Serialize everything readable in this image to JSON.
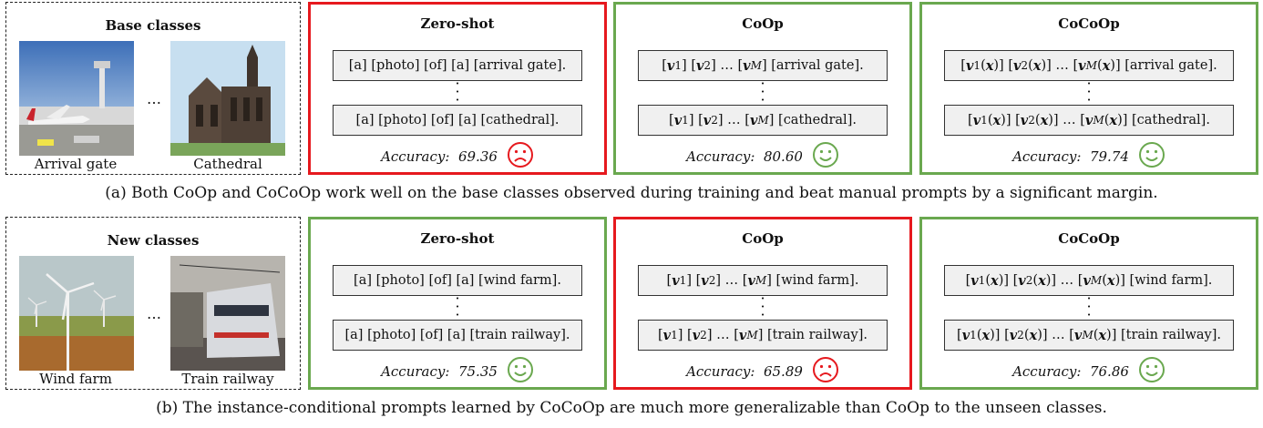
{
  "rows": [
    {
      "classes_title": "Base classes",
      "image_left_caption": "Arrival gate",
      "image_right_caption": "Cathedral",
      "ellipsis": "…",
      "panels": [
        {
          "title": "Zero-shot",
          "prompt_top": "[a] [photo] [of] [a] [arrival gate].",
          "prompt_bottom": "[a] [photo] [of] [a] [cathedral].",
          "accuracy_label": "Accuracy:",
          "accuracy": "69.36",
          "face": "sad-face-icon",
          "color": "#e6191e"
        },
        {
          "title": "CoOp",
          "prompt_top_suffix": "[arrival gate].",
          "prompt_bottom_suffix": "[cathedral].",
          "accuracy_label": "Accuracy:",
          "accuracy": "80.60",
          "face": "smiley-face-icon",
          "color": "#6aa84f"
        },
        {
          "title": "CoCoOp",
          "prompt_top_suffix": "[arrival gate].",
          "prompt_bottom_suffix": "[cathedral].",
          "accuracy_label": "Accuracy:",
          "accuracy": "79.74",
          "face": "smiley-face-icon",
          "color": "#6aa84f"
        }
      ],
      "caption": "(a) Both CoOp and CoCoOp work well on the base classes observed during training and beat manual prompts by a significant margin."
    },
    {
      "classes_title": "New classes",
      "image_left_caption": "Wind farm",
      "image_right_caption": "Train railway",
      "ellipsis": "…",
      "panels": [
        {
          "title": "Zero-shot",
          "prompt_top": "[a] [photo] [of] [a] [wind farm].",
          "prompt_bottom": "[a] [photo] [of] [a] [train railway].",
          "accuracy_label": "Accuracy:",
          "accuracy": "75.35",
          "face": "smiley-face-icon",
          "color": "#6aa84f"
        },
        {
          "title": "CoOp",
          "prompt_top_suffix": "[wind farm].",
          "prompt_bottom_suffix": "[train railway].",
          "accuracy_label": "Accuracy:",
          "accuracy": "65.89",
          "face": "sad-face-icon",
          "color": "#e6191e"
        },
        {
          "title": "CoCoOp",
          "prompt_top_suffix": "[wind farm].",
          "prompt_bottom_suffix": "[train railway].",
          "accuracy_label": "Accuracy:",
          "accuracy": "76.86",
          "face": "smiley-face-icon",
          "color": "#6aa84f"
        }
      ],
      "caption": "(b) The instance-conditional prompts learned by CoCoOp are much more generalizable than CoOp to the unseen classes."
    }
  ]
}
